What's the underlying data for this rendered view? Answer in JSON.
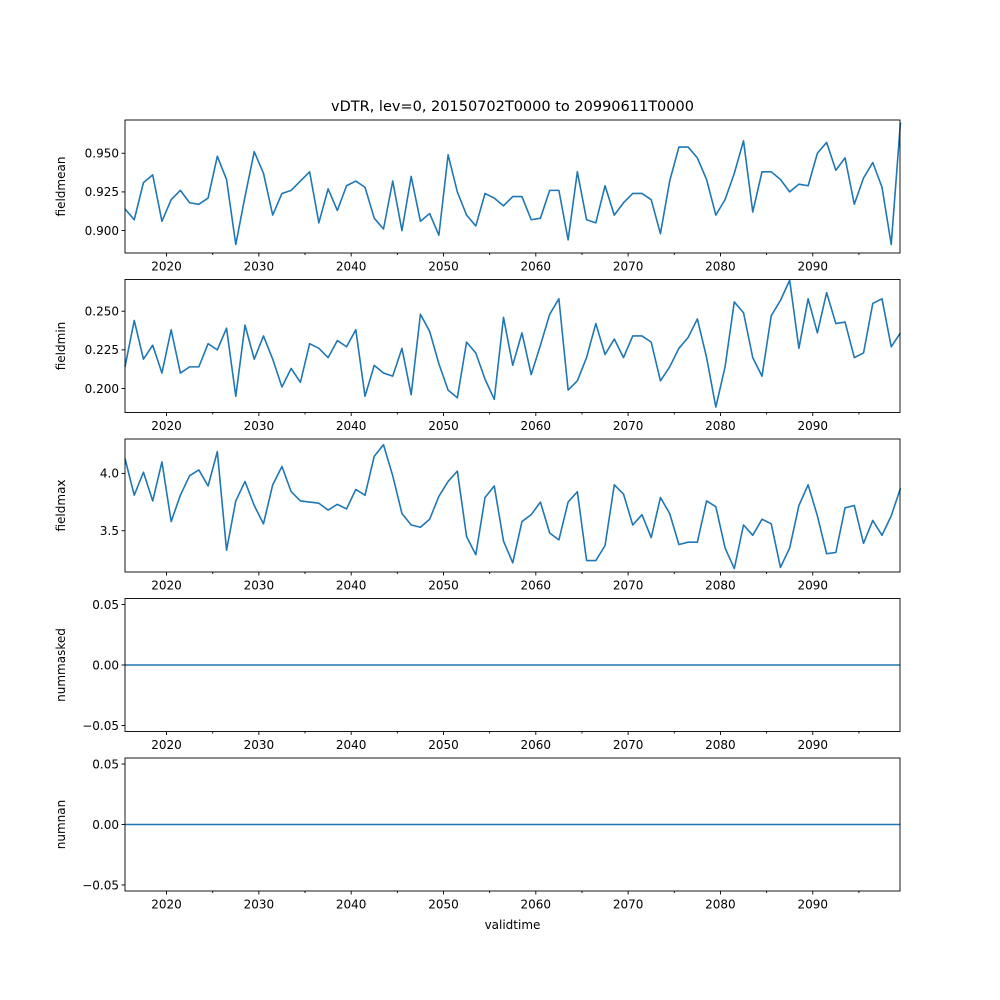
{
  "title": "vDTR, lev=0, 20150702T0000 to 20990611T0000",
  "chart_data": [
    {
      "type": "line",
      "ylabel": "fieldmean",
      "xlim": [
        2015.5,
        2099.45
      ],
      "ylim": [
        0.8855,
        0.9715
      ],
      "yticks": [
        0.9,
        0.925,
        0.95
      ],
      "ytick_labels": [
        "0.900",
        "0.925",
        "0.950"
      ],
      "x_start": 2015.5,
      "x_step": 1.0,
      "values": [
        0.914,
        0.907,
        0.931,
        0.936,
        0.906,
        0.92,
        0.926,
        0.918,
        0.917,
        0.921,
        0.948,
        0.933,
        0.891,
        0.922,
        0.951,
        0.937,
        0.91,
        0.924,
        0.926,
        0.932,
        0.938,
        0.905,
        0.927,
        0.913,
        0.929,
        0.932,
        0.928,
        0.908,
        0.901,
        0.932,
        0.9,
        0.935,
        0.906,
        0.911,
        0.897,
        0.949,
        0.925,
        0.91,
        0.903,
        0.924,
        0.921,
        0.916,
        0.922,
        0.922,
        0.907,
        0.908,
        0.926,
        0.926,
        0.894,
        0.938,
        0.907,
        0.905,
        0.929,
        0.91,
        0.918,
        0.924,
        0.924,
        0.92,
        0.898,
        0.932,
        0.954,
        0.954,
        0.947,
        0.933,
        0.91,
        0.92,
        0.937,
        0.958,
        0.912,
        0.938,
        0.938,
        0.933,
        0.925,
        0.93,
        0.929,
        0.95,
        0.957,
        0.939,
        0.947,
        0.917,
        0.934,
        0.944,
        0.928,
        0.891,
        0.97
      ]
    },
    {
      "type": "line",
      "ylabel": "fieldmin",
      "xlim": [
        2015.5,
        2099.45
      ],
      "ylim": [
        0.1845,
        0.2705
      ],
      "yticks": [
        0.2,
        0.225,
        0.25
      ],
      "ytick_labels": [
        "0.200",
        "0.225",
        "0.250"
      ],
      "x_start": 2015.5,
      "x_step": 1.0,
      "values": [
        0.214,
        0.244,
        0.219,
        0.228,
        0.21,
        0.238,
        0.21,
        0.214,
        0.214,
        0.229,
        0.225,
        0.239,
        0.195,
        0.241,
        0.219,
        0.234,
        0.219,
        0.201,
        0.213,
        0.204,
        0.229,
        0.226,
        0.22,
        0.231,
        0.227,
        0.238,
        0.195,
        0.215,
        0.21,
        0.208,
        0.226,
        0.196,
        0.248,
        0.237,
        0.216,
        0.199,
        0.194,
        0.23,
        0.223,
        0.206,
        0.193,
        0.246,
        0.215,
        0.236,
        0.209,
        0.228,
        0.248,
        0.258,
        0.199,
        0.205,
        0.22,
        0.242,
        0.222,
        0.232,
        0.22,
        0.234,
        0.234,
        0.23,
        0.205,
        0.214,
        0.226,
        0.233,
        0.245,
        0.22,
        0.188,
        0.214,
        0.256,
        0.249,
        0.22,
        0.208,
        0.247,
        0.257,
        0.27,
        0.226,
        0.258,
        0.236,
        0.262,
        0.242,
        0.243,
        0.22,
        0.223,
        0.255,
        0.258,
        0.227,
        0.236
      ]
    },
    {
      "type": "line",
      "ylabel": "fieldmax",
      "xlim": [
        2015.5,
        2099.45
      ],
      "ylim": [
        3.14,
        4.3
      ],
      "yticks": [
        3.5,
        4.0
      ],
      "ytick_labels": [
        "3.5",
        "4.0"
      ],
      "x_start": 2015.5,
      "x_step": 1.0,
      "values": [
        4.13,
        3.81,
        4.01,
        3.76,
        4.1,
        3.58,
        3.81,
        3.98,
        4.03,
        3.89,
        4.19,
        3.33,
        3.76,
        3.93,
        3.72,
        3.56,
        3.9,
        4.06,
        3.84,
        3.76,
        3.75,
        3.74,
        3.68,
        3.73,
        3.69,
        3.86,
        3.81,
        4.15,
        4.25,
        3.98,
        3.65,
        3.55,
        3.53,
        3.6,
        3.8,
        3.93,
        4.02,
        3.45,
        3.29,
        3.79,
        3.89,
        3.41,
        3.22,
        3.58,
        3.64,
        3.75,
        3.48,
        3.42,
        3.75,
        3.84,
        3.24,
        3.24,
        3.37,
        3.9,
        3.82,
        3.55,
        3.64,
        3.44,
        3.79,
        3.65,
        3.38,
        3.4,
        3.4,
        3.76,
        3.71,
        3.35,
        3.17,
        3.55,
        3.46,
        3.6,
        3.56,
        3.18,
        3.35,
        3.72,
        3.9,
        3.63,
        3.3,
        3.31,
        3.7,
        3.72,
        3.39,
        3.59,
        3.46,
        3.63,
        3.87
      ]
    },
    {
      "type": "line",
      "ylabel": "nummasked",
      "xlim": [
        2015.5,
        2099.45
      ],
      "ylim": [
        -0.055,
        0.055
      ],
      "yticks": [
        -0.05,
        0.0,
        0.05
      ],
      "ytick_labels": [
        "−0.05",
        "0.00",
        "0.05"
      ],
      "x": [
        2015.5,
        2099.45
      ],
      "values": [
        0,
        0
      ]
    },
    {
      "type": "line",
      "ylabel": "numnan",
      "xlabel": "validtime",
      "xlim": [
        2015.5,
        2099.45
      ],
      "ylim": [
        -0.055,
        0.055
      ],
      "yticks": [
        -0.05,
        0.0,
        0.05
      ],
      "ytick_labels": [
        "−0.05",
        "0.00",
        "0.05"
      ],
      "x": [
        2015.5,
        2099.45
      ],
      "values": [
        0,
        0
      ]
    }
  ],
  "x_major_ticks": [
    2020,
    2030,
    2040,
    2050,
    2060,
    2070,
    2080,
    2090
  ],
  "x_major_labels": [
    "2020",
    "2030",
    "2040",
    "2050",
    "2060",
    "2070",
    "2080",
    "2090"
  ],
  "x_minor_ticks": [
    2025,
    2035,
    2045,
    2055,
    2065,
    2075,
    2085,
    2095
  ],
  "colors": {
    "line": "#1f77b4",
    "axis": "#000000",
    "background": "#ffffff"
  }
}
